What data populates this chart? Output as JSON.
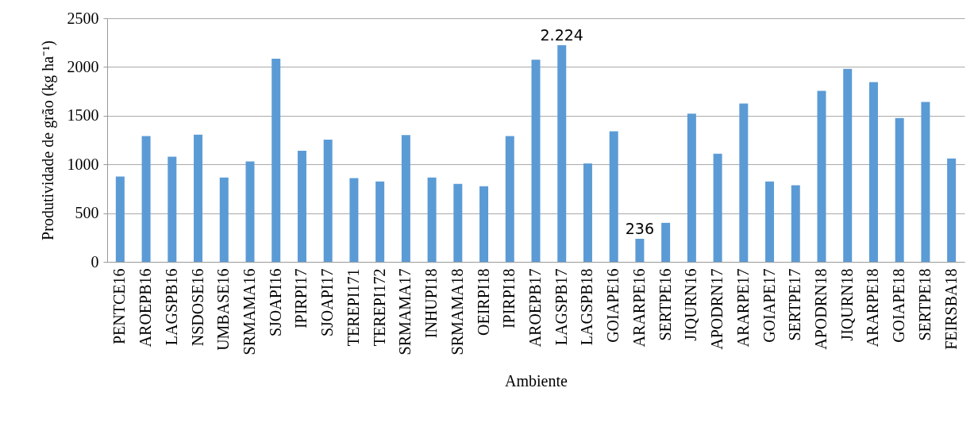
{
  "chart_data": {
    "type": "bar",
    "xlabel": "Ambiente",
    "ylabel": "Produtividade de grão (kg ha⁻¹)",
    "categories": [
      "PENTCE16",
      "AROEPB16",
      "LAGSPB16",
      "NSDOSE16",
      "UMBASE16",
      "SRMAMA16",
      "SJOAPI16",
      "IPIRPI17",
      "SJOAPI17",
      "TEREPI171",
      "TEREPI172",
      "SRMAMA17",
      "INHUPI18",
      "SRMAMA18",
      "OEIRPI18",
      "IPIRPI18",
      "AROEPB17",
      "LAGSPB17",
      "LAGSPB18",
      "GOIAPE16",
      "ARARPE16",
      "SERTPE16",
      "JIQURN16",
      "APODRN17",
      "ARARPE17",
      "GOIAPE17",
      "SERTPE17",
      "APODRN18",
      "JIQURN18",
      "ARARPE18",
      "GOIAPE18",
      "SERTPE18",
      "FEIRSBA18"
    ],
    "values": [
      875,
      1290,
      1080,
      1305,
      865,
      1030,
      2085,
      1140,
      1255,
      860,
      825,
      1300,
      865,
      800,
      775,
      1290,
      2075,
      2224,
      1010,
      1340,
      236,
      400,
      1520,
      1110,
      1625,
      825,
      785,
      1755,
      1980,
      1845,
      1475,
      1640,
      1060
    ],
    "value_labels": [
      null,
      null,
      null,
      null,
      null,
      null,
      null,
      null,
      null,
      null,
      null,
      null,
      null,
      null,
      null,
      null,
      null,
      "2.224",
      null,
      null,
      "236",
      null,
      null,
      null,
      null,
      null,
      null,
      null,
      null,
      null,
      null,
      null,
      null
    ],
    "color": "#5b9bd5",
    "ylim": [
      0,
      2500
    ],
    "yticks": [
      0,
      500,
      1000,
      1500,
      2000,
      2500
    ],
    "grid": "y"
  }
}
